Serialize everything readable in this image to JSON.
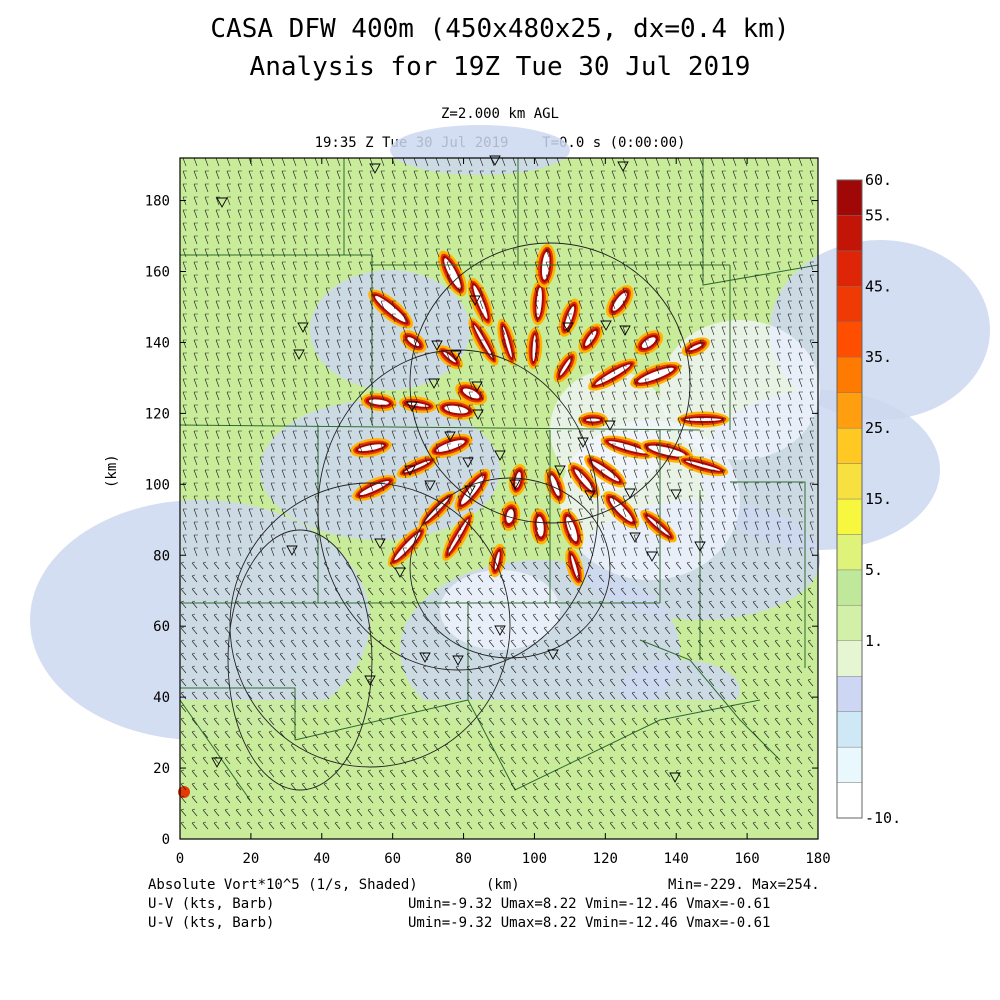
{
  "header": {
    "title_line1": "CASA DFW 400m (450x480x25, dx=0.4 km)",
    "title_line2": "Analysis for 19Z Tue 30 Jul 2019",
    "level": "Z=2.000 km AGL",
    "valid_time": "19:35 Z Tue 30 Jul 2019    T=0.0 s (0:00:00)"
  },
  "axes": {
    "x_ticks": [
      "0",
      "20",
      "40",
      "60",
      "80",
      "100",
      "120",
      "140",
      "160",
      "180"
    ],
    "y_ticks": [
      "0",
      "20",
      "40",
      "60",
      "80",
      "100",
      "120",
      "140",
      "160",
      "180"
    ],
    "x_label": "(km)",
    "y_label": "(km)",
    "x_range": [
      0,
      180
    ],
    "y_range": [
      0,
      192
    ]
  },
  "colorbar": {
    "labels": [
      "60.",
      "55.",
      "45.",
      "35.",
      "25.",
      "15.",
      "5.",
      "1.",
      "-10."
    ],
    "colors": [
      "#ffffff",
      "#e8f8fc",
      "#cfe8f5",
      "#cdd6f2",
      "#e6f5d2",
      "#d3f0a8",
      "#bfe89a",
      "#dff27a",
      "#f7f740",
      "#f7e040",
      "#ffc822",
      "#ff9f10",
      "#ff7a00",
      "#ff4e00",
      "#f03a06",
      "#de2508",
      "#c21508",
      "#a00808"
    ]
  },
  "footer": {
    "field_name": "Absolute Vort*10^5 (1/s, Shaded)",
    "x_unit": "(km)",
    "minmax": "Min=-229. Max=254.",
    "barb_label_1": "U-V (kts, Barb)",
    "barb_label_2": "U-V (kts, Barb)",
    "uv_stats_1": "Umin=-9.32 Umax=8.22 Vmin=-12.46 Vmax=-0.61",
    "uv_stats_2": "Umin=-9.32 Umax=8.22 Vmin=-12.46 Vmax=-0.61"
  }
}
